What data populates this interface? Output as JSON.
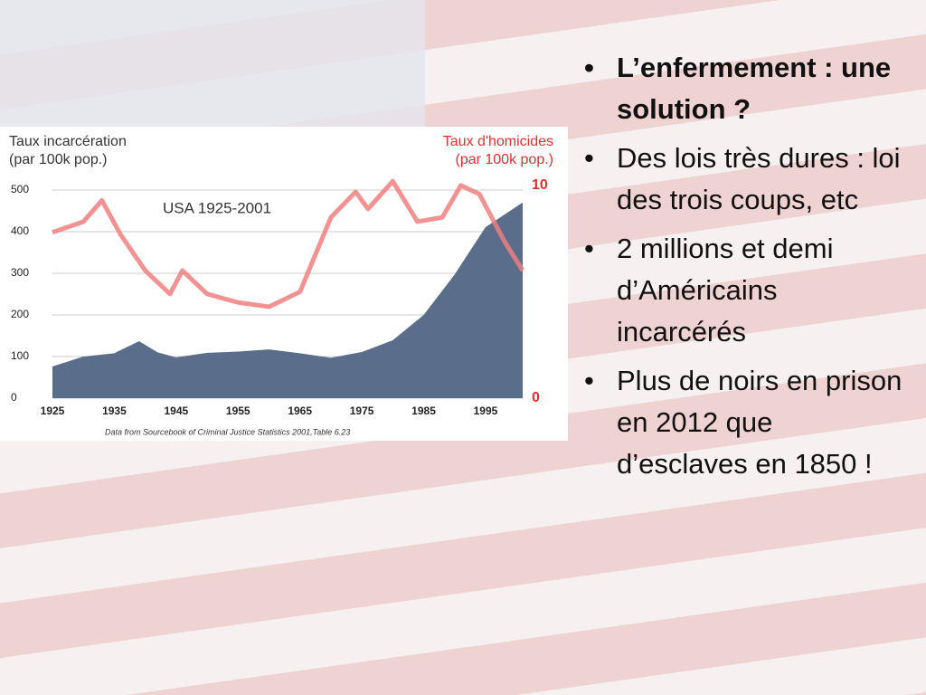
{
  "chart_data": {
    "type": "area-line",
    "ylabel": [
      "Taux incarcération",
      "(par 100k pop.)"
    ],
    "y2label": [
      "Taux d'homicides",
      "(par 100k pop.)"
    ],
    "annotation": "USA 1925-2001",
    "source": "Data from Sourcebook of Criminal Justice Statistics 2001,Table 6.23",
    "xlim": [
      1925,
      2001
    ],
    "xticks": [
      1925,
      1935,
      1945,
      1955,
      1965,
      1975,
      1985,
      1995
    ],
    "ylim": [
      0,
      500
    ],
    "yticks": [
      0,
      100,
      200,
      300,
      400,
      500
    ],
    "y2lim": [
      0,
      10
    ],
    "y2ticks": [
      0,
      10
    ],
    "grid": true,
    "series": [
      {
        "name": "Taux incarcération",
        "color": "#5a6e8c",
        "x": [
          1925,
          1930,
          1935,
          1939,
          1942,
          1945,
          1950,
          1955,
          1960,
          1965,
          1970,
          1975,
          1980,
          1985,
          1990,
          1995,
          2001
        ],
        "values": [
          76,
          100,
          108,
          137,
          110,
          98,
          109,
          112,
          117,
          108,
          97,
          111,
          139,
          200,
          297,
          411,
          470
        ]
      },
      {
        "name": "Taux d'homicides",
        "color": "#f07f7f",
        "axis": "y2",
        "x": [
          1925,
          1930,
          1933,
          1936,
          1940,
          1944,
          1946,
          1950,
          1955,
          1960,
          1965,
          1970,
          1974,
          1976,
          1980,
          1984,
          1988,
          1991,
          1994,
          1998,
          2001
        ],
        "values": [
          7.8,
          8.3,
          9.3,
          7.7,
          6.0,
          4.9,
          6.0,
          4.9,
          4.5,
          4.3,
          5.0,
          8.5,
          9.7,
          8.9,
          10.2,
          8.3,
          8.5,
          10.0,
          9.6,
          7.4,
          6.0
        ]
      }
    ]
  },
  "bullets": [
    "L’enfermement : une solution ?",
    "Des lois très dures : loi des trois coups, etc",
    "2 millions et demi d’Américains incarcérés",
    "Plus de noirs en prison en 2012 que d’esclaves en 1850 !"
  ]
}
